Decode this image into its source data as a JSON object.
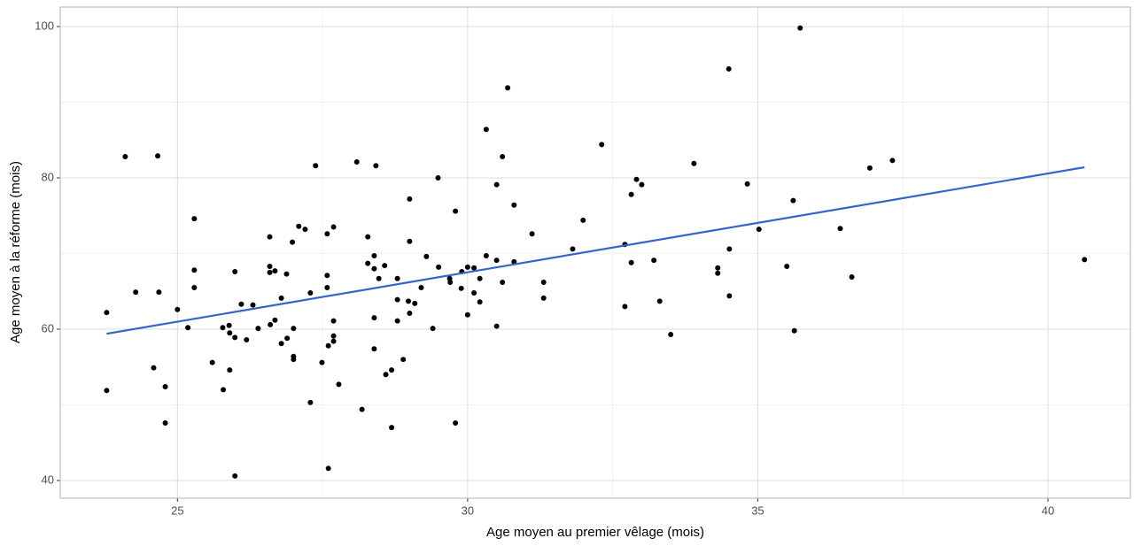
{
  "chart_data": {
    "type": "scatter",
    "x_label": "Age moyen au premier vêlage (mois)",
    "y_label": "Age moyen à la réforme (mois)",
    "xlim": [
      22.98,
      41.42
    ],
    "ylim": [
      37.66,
      102.57
    ],
    "xticks": [
      25,
      30,
      35,
      40
    ],
    "yticks": [
      40,
      60,
      80,
      100
    ],
    "grid": true,
    "point_color": "#000000",
    "x": [
      23.78,
      23.78,
      24.1,
      24.28,
      24.66,
      24.68,
      24.59,
      24.79,
      24.79,
      25.0,
      25.18,
      25.29,
      25.29,
      25.29,
      25.6,
      25.78,
      25.79,
      25.89,
      25.9,
      25.9,
      25.99,
      25.99,
      25.99,
      26.1,
      26.19,
      26.3,
      26.39,
      26.59,
      26.59,
      26.59,
      26.6,
      26.68,
      26.68,
      26.79,
      26.79,
      26.88,
      26.89,
      26.98,
      27.0,
      27.0,
      27.0,
      27.09,
      27.2,
      27.29,
      27.29,
      27.38,
      27.49,
      27.58,
      27.58,
      27.58,
      27.6,
      27.6,
      27.69,
      27.69,
      27.69,
      27.69,
      27.78,
      28.09,
      28.18,
      28.28,
      28.28,
      28.39,
      28.39,
      28.39,
      28.39,
      28.42,
      28.47,
      28.57,
      28.59,
      28.69,
      28.69,
      28.79,
      28.79,
      28.79,
      28.89,
      28.98,
      29.0,
      29.0,
      29.0,
      29.09,
      29.2,
      29.29,
      29.4,
      29.49,
      29.5,
      29.69,
      29.7,
      29.79,
      29.79,
      29.89,
      29.9,
      30.0,
      30.0,
      30.11,
      30.11,
      30.21,
      30.21,
      30.32,
      30.32,
      30.5,
      30.5,
      30.5,
      30.6,
      30.6,
      30.69,
      30.8,
      30.8,
      31.11,
      31.31,
      31.31,
      31.81,
      31.99,
      32.31,
      32.71,
      32.71,
      32.82,
      32.82,
      32.91,
      33.0,
      33.21,
      33.31,
      33.5,
      33.9,
      34.31,
      34.31,
      34.5,
      34.51,
      34.51,
      34.82,
      35.02,
      35.5,
      35.61,
      35.63,
      35.73,
      36.42,
      36.62,
      36.93,
      37.32,
      40.63
    ],
    "y": [
      62.2,
      51.9,
      82.8,
      64.9,
      82.9,
      64.9,
      54.9,
      52.4,
      47.6,
      62.6,
      60.2,
      74.6,
      67.8,
      65.5,
      55.6,
      60.2,
      52.0,
      60.5,
      59.5,
      54.6,
      67.6,
      58.9,
      40.6,
      63.3,
      58.6,
      63.2,
      60.1,
      72.2,
      68.3,
      67.5,
      60.6,
      67.7,
      61.2,
      64.1,
      58.1,
      67.3,
      58.8,
      71.5,
      60.1,
      56.4,
      56.0,
      73.6,
      73.2,
      64.8,
      50.3,
      81.6,
      55.6,
      72.6,
      67.1,
      65.5,
      57.8,
      41.6,
      73.5,
      61.1,
      59.1,
      58.4,
      52.7,
      82.1,
      49.4,
      72.2,
      68.7,
      69.7,
      68.0,
      61.5,
      57.4,
      81.6,
      66.7,
      68.4,
      54.0,
      54.6,
      47.0,
      66.7,
      63.9,
      61.1,
      56.0,
      63.7,
      77.2,
      71.6,
      62.1,
      63.4,
      65.5,
      69.6,
      60.1,
      80.0,
      68.2,
      66.7,
      66.2,
      75.6,
      47.6,
      65.4,
      67.6,
      68.2,
      61.9,
      64.8,
      68.1,
      66.7,
      63.6,
      69.7,
      86.4,
      79.1,
      69.1,
      60.4,
      82.8,
      66.2,
      91.9,
      76.4,
      68.9,
      72.6,
      66.2,
      64.1,
      70.6,
      74.4,
      84.4,
      71.2,
      63.0,
      77.8,
      68.8,
      79.8,
      79.1,
      69.1,
      63.7,
      59.3,
      81.9,
      68.1,
      67.4,
      94.4,
      70.6,
      64.4,
      79.2,
      73.2,
      68.3,
      77.0,
      59.8,
      99.8,
      73.3,
      66.9,
      81.3,
      82.3,
      69.2
    ],
    "fit": {
      "color": "#3366cc",
      "x": [
        23.78,
        40.63
      ],
      "y": [
        59.4,
        81.4
      ]
    }
  }
}
